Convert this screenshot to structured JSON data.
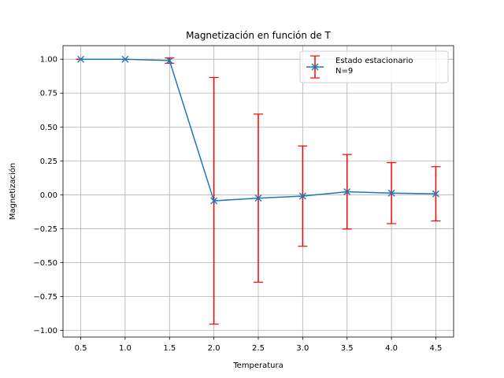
{
  "chart_data": {
    "type": "line",
    "title": "Magnetización en función de T",
    "xlabel": "Temperatura",
    "ylabel": "Magnetización",
    "xlim": [
      0.3,
      4.7
    ],
    "ylim": [
      -1.05,
      1.1
    ],
    "xticks": [
      0.5,
      1.0,
      1.5,
      2.0,
      2.5,
      3.0,
      3.5,
      4.0,
      4.5
    ],
    "yticks": [
      -1.0,
      -0.75,
      -0.5,
      -0.25,
      0.0,
      0.25,
      0.5,
      0.75,
      1.0
    ],
    "grid": true,
    "legend_position": "top-right",
    "series": [
      {
        "name": "Estado estacionario\nN=9",
        "x": [
          0.5,
          1.0,
          1.5,
          2.0,
          2.5,
          3.0,
          3.5,
          4.0,
          4.5
        ],
        "y": [
          1.0,
          1.0,
          0.99,
          -0.045,
          -0.025,
          -0.01,
          0.022,
          0.012,
          0.007
        ],
        "yerr": [
          0.0,
          0.0,
          0.02,
          0.91,
          0.62,
          0.37,
          0.275,
          0.225,
          0.2
        ],
        "line_color": "#1f77b4",
        "marker": "x",
        "errorbar_color": "#ff0000"
      }
    ]
  }
}
